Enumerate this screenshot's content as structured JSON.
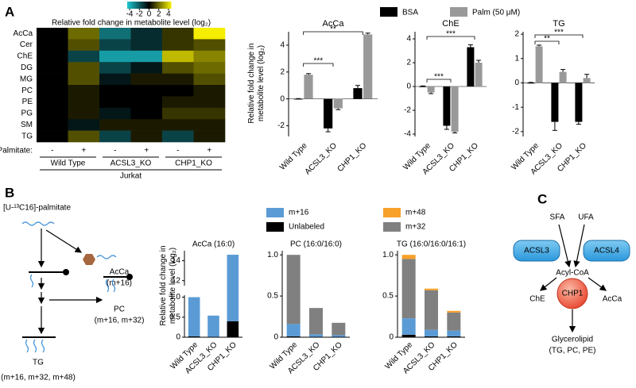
{
  "panels": [
    "A",
    "B",
    "C"
  ],
  "chart_data": [
    {
      "type": "heatmap",
      "title": "Relative fold change in metabolite level (log₂)",
      "rows": [
        "AcCa",
        "Cer",
        "ChE",
        "DG",
        "MG",
        "PC",
        "PE",
        "PG",
        "SM",
        "TG"
      ],
      "columns": [
        "-",
        "+",
        "-",
        "+",
        "-",
        "+"
      ],
      "row_label": "Palmitate:",
      "groups": [
        "Wild Type",
        "ACSL3_KO",
        "CHP1_KO"
      ],
      "group_label": "Jurkat",
      "values": [
        [
          0,
          2,
          -2.5,
          -1,
          1,
          4.5
        ],
        [
          0,
          1.5,
          -1.5,
          -1,
          1,
          1.5
        ],
        [
          0,
          -1.5,
          -3.5,
          -3.5,
          3.5,
          2.5
        ],
        [
          0,
          1.5,
          -1.5,
          -0.5,
          1.5,
          2
        ],
        [
          0,
          1.5,
          -0.5,
          0.5,
          0.5,
          1.5
        ],
        [
          0,
          0.5,
          0,
          0,
          0,
          0.5
        ],
        [
          0,
          0.5,
          0,
          0,
          0.5,
          0.5
        ],
        [
          0,
          0.5,
          -0.5,
          0,
          1,
          1
        ],
        [
          0,
          -0.5,
          0.5,
          0.5,
          0.5,
          0.5
        ],
        [
          0,
          1.5,
          -1.5,
          0.5,
          -1.5,
          0.5
        ]
      ],
      "colorbar": {
        "lim": [
          -4.5,
          4.5
        ],
        "ticks": [
          -4,
          -2,
          0,
          2,
          4
        ]
      }
    },
    {
      "type": "bar",
      "y_label": [
        "Relative fold change in",
        "metabolite level (log₂)"
      ],
      "categories": [
        "Wild Type",
        "ACSL3_KO",
        "CHP1_KO"
      ],
      "legend": [
        {
          "name": "BSA",
          "color": "#000000"
        },
        {
          "name": "Palm (50 μM)",
          "color": "#999999"
        }
      ],
      "panels": [
        {
          "title": "AcCa",
          "ylim": [
            -2.8,
            5.0
          ],
          "yticks": [
            -2,
            0,
            2,
            4
          ],
          "series": [
            {
              "values": [
                0,
                -2.2,
                0.8
              ],
              "errors": [
                0.02,
                0.25,
                0.2
              ]
            },
            {
              "values": [
                1.8,
                -0.7,
                4.8
              ],
              "errors": [
                0.08,
                0.1,
                0.1
              ]
            }
          ],
          "annotations": [
            "**",
            "***"
          ]
        },
        {
          "title": "ChE",
          "ylim": [
            -4.2,
            4.6
          ],
          "yticks": [
            -4,
            -2,
            0,
            2,
            4
          ],
          "series": [
            {
              "values": [
                0,
                -3.3,
                3.3
              ],
              "errors": [
                0.05,
                0.3,
                0.2
              ]
            },
            {
              "values": [
                -0.5,
                -3.8,
                2.0
              ],
              "errors": [
                0.1,
                0.1,
                0.2
              ]
            }
          ],
          "annotations": [
            "***",
            "***"
          ]
        },
        {
          "title": "TG",
          "ylim": [
            -2.2,
            2.1
          ],
          "yticks": [
            -2,
            -1,
            0,
            1,
            2
          ],
          "series": [
            {
              "values": [
                0,
                -1.6,
                -1.6
              ],
              "errors": [
                0.02,
                0.35,
                0.1
              ]
            },
            {
              "values": [
                1.5,
                0.45,
                0.2
              ],
              "errors": [
                0.05,
                0.1,
                0.15
              ]
            }
          ],
          "annotations": [
            "**",
            "***"
          ]
        }
      ]
    },
    {
      "type": "stacked_bar",
      "y_label": [
        "Relative fold change in",
        "metabolite level (log₂)"
      ],
      "categories": [
        "Wild Type",
        "ACSL3_KO",
        "CHP1_KO"
      ],
      "legend": [
        {
          "name": "Unlabeled",
          "color": "#000000"
        },
        {
          "name": "m+16",
          "color": "#5b9bd5"
        },
        {
          "name": "m+32",
          "color": "#808080"
        },
        {
          "name": "m+48",
          "color": "#f7a02a"
        }
      ],
      "panels": [
        {
          "title": "AcCa (16:0)",
          "ylim": [
            0,
            15
          ],
          "ybreak": [
            1.05,
            11.5
          ],
          "yticks": [
            0,
            0.5,
            {
              "value": 1,
              "label": "1.0"
            },
            12,
            14
          ],
          "series": [
            [
              0.02,
              0.01,
              0.4
            ],
            [
              0.98,
              0.53,
              14.2
            ],
            [
              0,
              0,
              0
            ],
            [
              0,
              0,
              0
            ]
          ]
        },
        {
          "title": "PC (16:0/16:0)",
          "ylim": [
            0,
            1.05
          ],
          "yticks": [
            0,
            0.5,
            {
              "value": 1,
              "label": "1.0"
            }
          ],
          "series": [
            [
              0.01,
              0.005,
              0.005
            ],
            [
              0.15,
              0.03,
              0.02
            ],
            [
              0.84,
              0.32,
              0.15
            ],
            [
              0,
              0,
              0
            ]
          ]
        },
        {
          "title": "TG (16:0/16:0/16:1)",
          "ylim": [
            0,
            1.05
          ],
          "yticks": [
            0,
            0.5,
            {
              "value": 1,
              "label": "1.0"
            }
          ],
          "series": [
            [
              0.03,
              0.01,
              0.01
            ],
            [
              0.2,
              0.08,
              0.07
            ],
            [
              0.72,
              0.48,
              0.22
            ],
            [
              0.05,
              0.02,
              0.02
            ]
          ]
        }
      ]
    }
  ],
  "diagram_b": {
    "source": "[U-¹³C16]-palmitate",
    "acca": [
      "AcCa",
      "(m+16)"
    ],
    "pc": [
      "PC",
      "(m+16, m+32)"
    ],
    "tg": [
      "TG",
      "(m+16, m+32, m+48)"
    ]
  },
  "diagram_c": {
    "inputs": [
      "SFA",
      "UFA"
    ],
    "enzymes": [
      "ACSL3",
      "ACSL4"
    ],
    "intermediate": "Acyl-CoA",
    "products": [
      "ChE",
      "AcCa"
    ],
    "regulator": "CHP1",
    "output": [
      "Glycerolipid",
      "(TG, PC, PE)"
    ]
  }
}
